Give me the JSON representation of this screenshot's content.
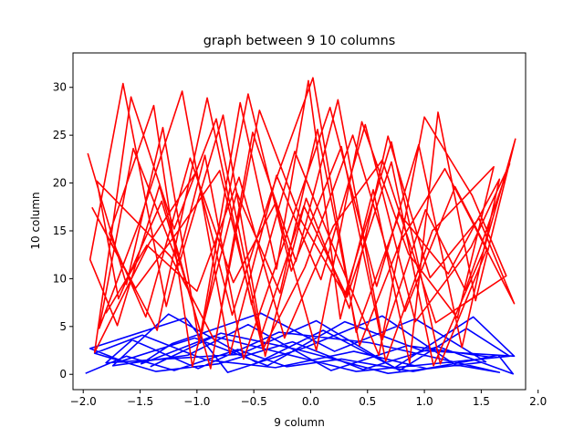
{
  "chart_data": {
    "type": "line",
    "title": "graph between 9 10 columns",
    "xlabel": "9 column",
    "ylabel": "10 column",
    "xlim": [
      -2.09,
      1.89
    ],
    "ylim": [
      -1.6,
      33.6
    ],
    "xticks": [
      -2.0,
      -1.5,
      -1.0,
      -0.5,
      0.0,
      0.5,
      1.0,
      1.5,
      2.0
    ],
    "xtick_labels": [
      "−2.0",
      "−1.5",
      "−1.0",
      "−0.5",
      "0.0",
      "0.5",
      "1.0",
      "1.5",
      "2.0"
    ],
    "yticks": [
      0,
      5,
      10,
      15,
      20,
      25,
      30
    ],
    "ytick_labels": [
      "0",
      "5",
      "10",
      "15",
      "20",
      "25",
      "30"
    ],
    "grid": false,
    "legend": "none",
    "series": [
      {
        "color": "#0000ff",
        "x": [
          -1.98,
          -1.62,
          -1.2,
          -0.64,
          -0.21,
          0.27,
          0.9,
          1.65,
          1.78,
          1.12,
          0.46,
          -0.16,
          -0.81,
          -1.36,
          -1.9,
          -1.48,
          -0.92,
          -0.31,
          0.38,
          1.02,
          1.58,
          0.85,
          0.18,
          -0.55,
          -1.08,
          -1.74,
          -1.25,
          -0.47,
          0.11,
          0.74,
          1.43,
          1.79,
          0.97,
          0.3,
          -0.38,
          -1.02,
          -1.66,
          -1.94,
          -1.1,
          -0.73,
          -0.05,
          0.63,
          1.27,
          1.66,
          0.52,
          -0.28,
          -0.99,
          -1.57,
          -1.8,
          -0.62,
          0.05,
          0.78,
          1.37,
          1.75,
          0.4,
          -0.86,
          -1.49,
          -1.22,
          -0.44,
          0.21,
          0.92,
          1.54,
          0.68,
          -0.12,
          -0.79,
          -1.41
        ],
        "y": [
          0.1,
          1.9,
          0.4,
          2.6,
          0.8,
          1.6,
          0.3,
          2.0,
          0.05,
          2.9,
          0.5,
          3.4,
          1.1,
          0.3,
          2.2,
          4.1,
          1.5,
          0.7,
          2.4,
          0.6,
          1.8,
          3.0,
          0.4,
          5.2,
          2.0,
          0.9,
          6.3,
          1.2,
          4.6,
          0.7,
          6.0,
          1.9,
          2.5,
          5.5,
          0.9,
          3.8,
          1.4,
          2.7,
          5.9,
          0.2,
          2.8,
          6.1,
          1.0,
          0.2,
          3.3,
          4.4,
          0.6,
          3.6,
          1.2,
          2.1,
          5.6,
          0.4,
          4.8,
          1.9,
          0.3,
          4.0,
          1.1,
          3.2,
          6.4,
          2.4,
          5.8,
          1.3,
          0.1,
          2.6,
          4.3,
          0.8
        ]
      },
      {
        "color": "#ff0000",
        "x": [
          -1.96,
          -1.62,
          -1.3,
          -0.98,
          -0.62,
          -0.3,
          -0.02,
          0.26,
          0.55,
          0.87,
          1.12,
          1.45,
          1.8,
          1.52,
          1.08,
          0.71,
          0.32,
          -0.06,
          -0.44,
          -0.83,
          -1.2,
          -1.58,
          -1.9,
          -1.42,
          -1.01,
          -0.69,
          -0.35,
          0.02,
          0.4,
          0.78,
          1.21,
          1.66,
          1.33,
          0.95,
          0.58,
          0.17,
          -0.22,
          -0.59,
          -0.93,
          -1.27,
          -1.65,
          -1.94,
          -1.7,
          -1.33,
          -0.88,
          -0.51,
          -0.13,
          0.24,
          0.63,
          1.01,
          1.36,
          1.75,
          1.41,
          0.92,
          0.48,
          0.09,
          -0.3,
          -0.71,
          -1.13,
          -1.51,
          -1.86,
          -1.56,
          -1.16,
          -0.77,
          -0.4,
          -0.04,
          0.34,
          0.68,
          1.05,
          1.48,
          1.79,
          1.18,
          0.79,
          0.43,
          0.06,
          -0.27,
          -0.65,
          -1.04,
          -1.38,
          -1.77,
          -1.45,
          -1.06,
          -0.68,
          -0.31,
          0.05,
          0.45,
          0.86,
          1.29,
          1.61,
          1.07,
          0.66,
          0.27,
          -0.17,
          -0.55,
          -0.96,
          -1.31,
          -1.69,
          -1.88,
          -1.23,
          -0.84,
          -0.45,
          -0.08,
          0.3,
          0.71,
          1.14,
          1.55,
          1.27,
          0.83,
          0.37,
          -0.05,
          -0.42,
          -0.8,
          -1.17,
          -1.54,
          -1.92,
          -1.35,
          -0.91,
          -0.52,
          -0.14,
          0.22,
          0.6,
          1.0,
          1.42,
          1.72,
          1.1,
          0.63,
          0.2,
          -0.23,
          -0.63,
          -1.0,
          -1.44,
          -1.8
        ],
        "y": [
          23.1,
          9.4,
          25.8,
          3.3,
          28.4,
          11.0,
          30.7,
          5.8,
          19.3,
          1.2,
          27.4,
          7.7,
          24.6,
          12.9,
          0.9,
          22.2,
          8.1,
          17.6,
          3.9,
          26.7,
          15.2,
          29.0,
          2.3,
          13.7,
          21.1,
          6.2,
          18.9,
          31.0,
          4.4,
          16.8,
          10.5,
          20.4,
          2.8,
          24.0,
          9.2,
          27.9,
          14.3,
          1.6,
          22.9,
          7.1,
          30.4,
          12.0,
          5.1,
          19.7,
          0.6,
          25.3,
          11.8,
          28.7,
          3.6,
          17.2,
          8.8,
          22.0,
          13.3,
          5.5,
          26.1,
          9.9,
          20.8,
          2.1,
          29.6,
          15.8,
          4.8,
          23.6,
          11.4,
          27.1,
          1.9,
          18.4,
          6.9,
          24.9,
          10.1,
          16.3,
          7.4,
          21.5,
          13.9,
          3.0,
          25.6,
          8.5,
          19.0,
          0.8,
          28.1,
          14.7,
          6.0,
          22.6,
          9.6,
          17.9,
          2.5,
          26.4,
          12.6,
          5.9,
          21.7,
          15.0,
          1.4,
          23.8,
          10.8,
          29.3,
          4.1,
          18.1,
          7.9,
          20.2,
          12.3,
          3.4,
          27.6,
          16.0,
          8.3,
          24.3,
          1.1,
          13.1,
          19.6,
          6.6,
          25.0,
          11.2,
          2.6,
          21.3,
          14.9,
          9.0,
          17.4,
          4.6,
          28.9,
          7.3,
          23.3,
          12.7,
          2.0,
          26.9,
          18.7,
          10.3,
          5.4,
          22.4,
          15.5,
          3.8,
          20.6,
          8.7,
          13.5,
          6.4
        ]
      }
    ]
  }
}
